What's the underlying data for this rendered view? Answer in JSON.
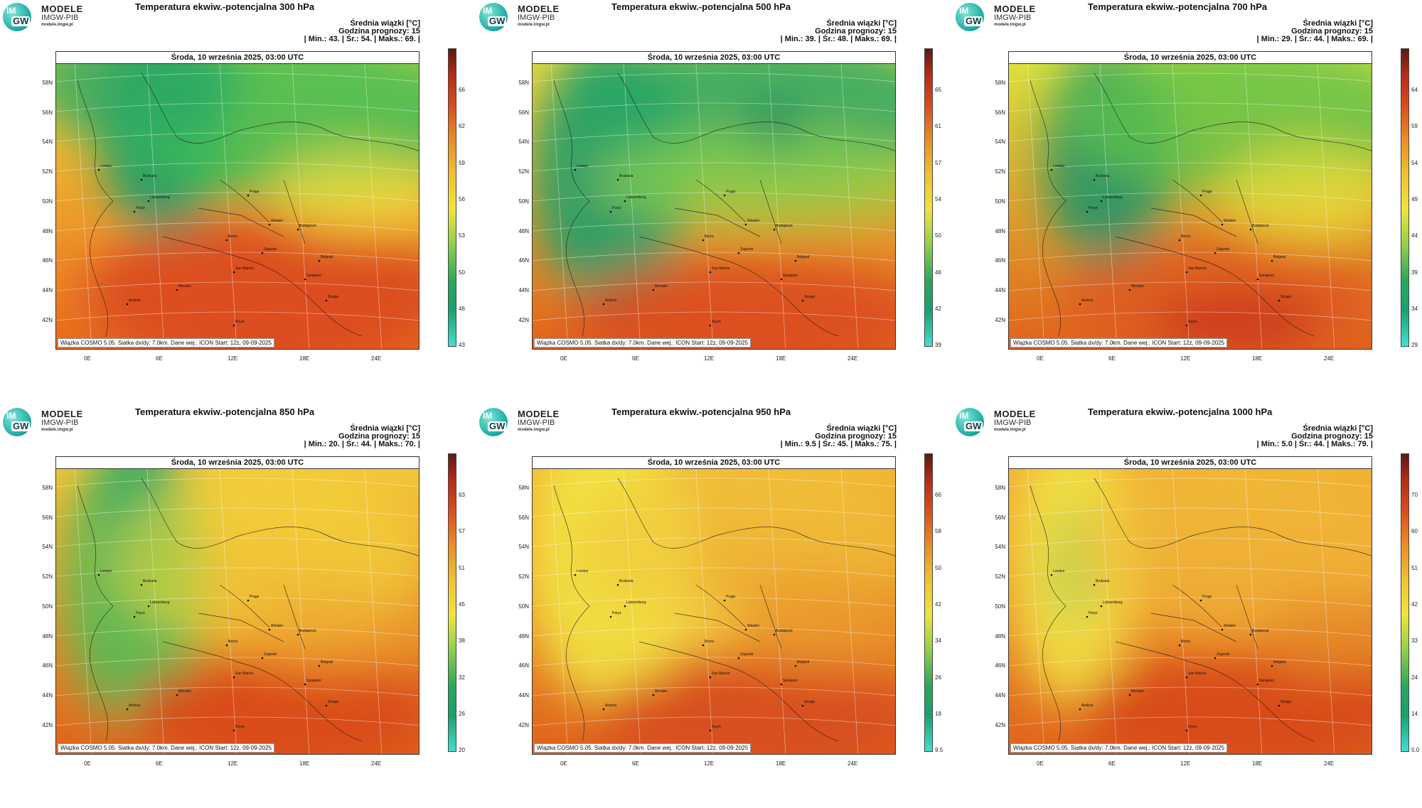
{
  "logo": {
    "line1": "MODELE",
    "line2": "IMGW-PIB",
    "line3": "modele.imgw.pl",
    "im": "IM",
    "gw": "GW"
  },
  "common": {
    "date_label": "Środa, 10 września 2025, 03:00 UTC",
    "info_line1": "Średnia wiązki [°C]",
    "info_line2": "Godzina prognozy: 15",
    "footer": "Wiązka COSMO 5.05. Siatka dx/dy: 7.0km. Dane wej.: ICON Start: 12z, 09-09-2025",
    "lat_labels": [
      "58N",
      "56N",
      "54N",
      "52N",
      "50N",
      "48N",
      "46N",
      "44N",
      "42N"
    ],
    "lon_labels": [
      "0E",
      "6E",
      "12E",
      "18E",
      "24E"
    ],
    "cities": [
      "Londyn",
      "Bruksela",
      "Luksemburg",
      "Paryż",
      "Praga",
      "Wiedeń",
      "Budapeszt",
      "Berno",
      "Zagrzeb",
      "Belgrad",
      "San Marino",
      "Sarajewo",
      "Monako",
      "Andora",
      "Rzym",
      "Skopje"
    ]
  },
  "panels": [
    {
      "title": "Temperatura ekwiw.-potencjalna 300 hPa",
      "stats": "| Min.:    43. | Śr.:    54. | Maks.:    69. |",
      "colorbar": [
        "66",
        "62",
        "59",
        "56",
        "53",
        "50",
        "46",
        "43"
      ],
      "scheme": "p300"
    },
    {
      "title": "Temperatura ekwiw.-potencjalna 500 hPa",
      "stats": "| Min.:    39. | Śr.:    48. | Maks.:    69. |",
      "colorbar": [
        "65",
        "61",
        "57",
        "54",
        "50",
        "46",
        "42",
        "39"
      ],
      "scheme": "p500"
    },
    {
      "title": "Temperatura ekwiw.-potencjalna 700 hPa",
      "stats": "| Min.:    29. | Śr.:    44. | Maks.:    69. |",
      "colorbar": [
        "64",
        "59",
        "54",
        "49",
        "44",
        "39",
        "34",
        "29"
      ],
      "scheme": "p700"
    },
    {
      "title": "Temperatura ekwiw.-potencjalna 850 hPa",
      "stats": "| Min.:    20. | Śr.:    44. | Maks.:    70. |",
      "colorbar": [
        "63",
        "57",
        "51",
        "45",
        "38",
        "32",
        "26",
        "20"
      ],
      "scheme": "p850"
    },
    {
      "title": "Temperatura ekwiw.-potencjalna 950 hPa",
      "stats": "| Min.:    9.5 | Śr.:    45. | Maks.:    75. |",
      "colorbar": [
        "66",
        "58",
        "50",
        "42",
        "34",
        "26",
        "18",
        "9.5"
      ],
      "scheme": "p950"
    },
    {
      "title": "Temperatura ekwiw.-potencjalna 1000 hPa",
      "stats": "| Min.:    5.0 | Śr.:    44. | Maks.:    79. |",
      "colorbar": [
        "70",
        "60",
        "51",
        "42",
        "33",
        "24",
        "14",
        "5.0"
      ],
      "scheme": "p1000"
    }
  ]
}
